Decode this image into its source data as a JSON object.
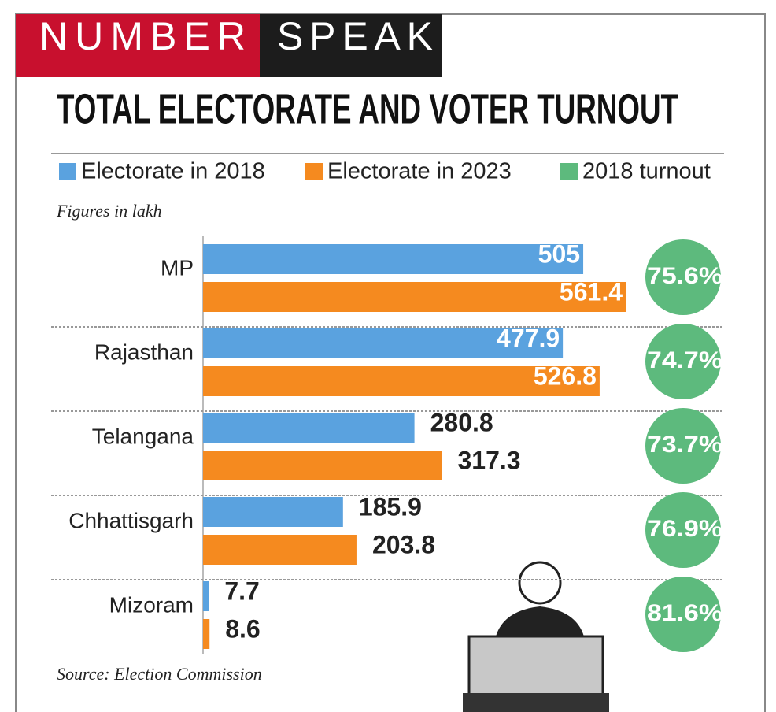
{
  "header": {
    "left": "NUMBER",
    "right": "SPEAK"
  },
  "chart_data": {
    "type": "bar",
    "orientation": "horizontal",
    "title": "TOTAL ELECTORATE AND VOTER TURNOUT",
    "note": "Figures in lakh",
    "source": "Source: Election Commission",
    "categories": [
      "MP",
      "Rajasthan",
      "Telangana",
      "Chhattisgarh",
      "Mizoram"
    ],
    "series": [
      {
        "name": "Electorate in 2018",
        "color": "#5aa2df",
        "values": [
          505,
          477.9,
          280.8,
          185.9,
          7.7
        ]
      },
      {
        "name": "Electorate in 2023",
        "color": "#f58a1f",
        "values": [
          561.4,
          526.8,
          317.3,
          203.8,
          8.6
        ]
      },
      {
        "name": "2018 turnout",
        "color": "#5dba7d",
        "type": "circle",
        "values": [
          75.6,
          74.7,
          73.7,
          76.9,
          81.6
        ],
        "value_labels": [
          "75.6%",
          "74.7%",
          "73.7%",
          "76.9%",
          "81.6%"
        ]
      }
    ]
  }
}
